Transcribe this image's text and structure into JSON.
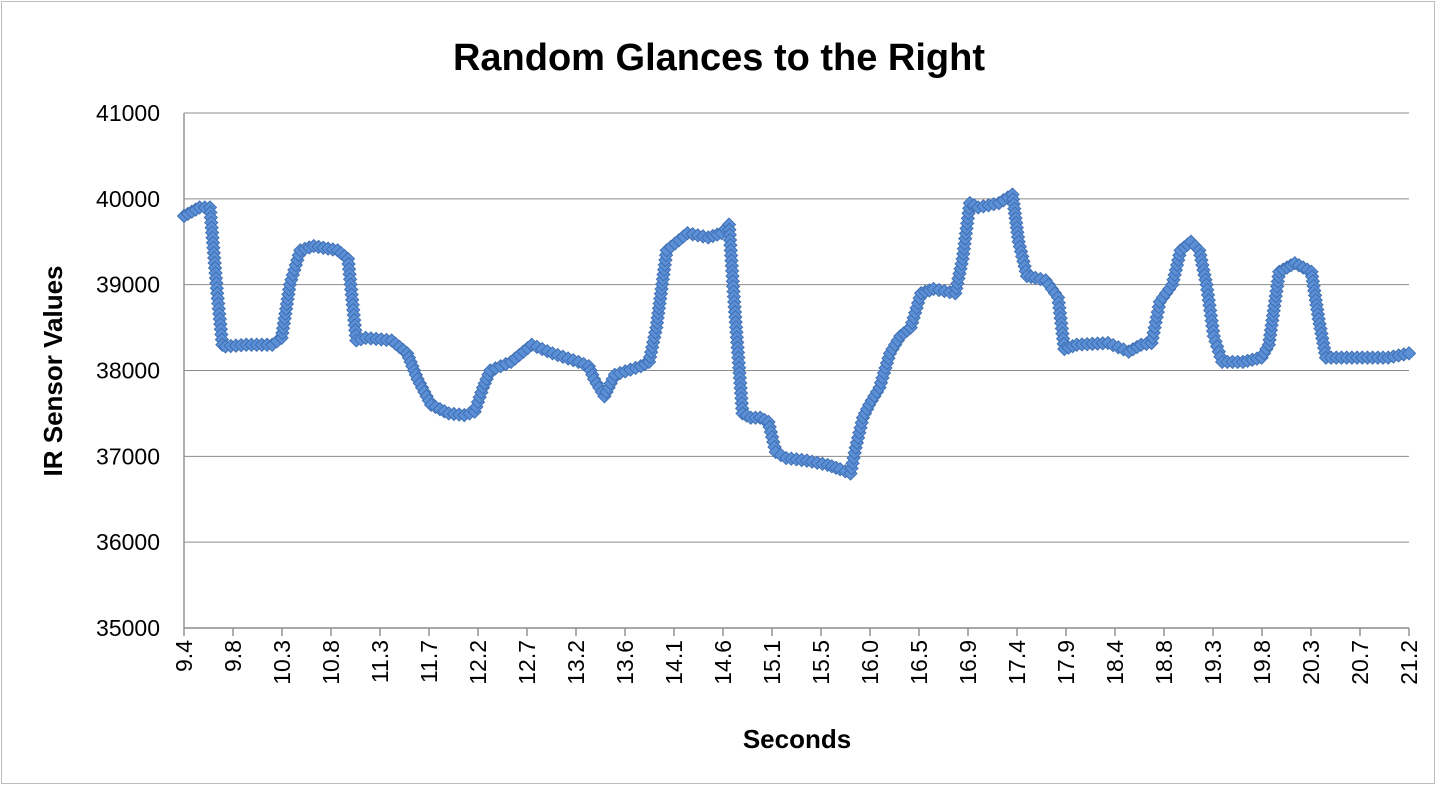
{
  "chart_data": {
    "type": "line",
    "title": "Random Glances to the Right",
    "xlabel": "Seconds",
    "ylabel": "IR Sensor Values",
    "ylim": [
      35000,
      41000
    ],
    "yticks": [
      "35000",
      "36000",
      "37000",
      "38000",
      "39000",
      "40000",
      "41000"
    ],
    "xlim": [
      9.4,
      21.2
    ],
    "xticks": [
      "9.4",
      "9.8",
      "10.3",
      "10.8",
      "11.3",
      "11.7",
      "12.2",
      "12.7",
      "13.2",
      "13.6",
      "14.1",
      "14.6",
      "15.1",
      "15.5",
      "16.0",
      "16.5",
      "16.9",
      "17.4",
      "17.9",
      "18.4",
      "18.8",
      "19.3",
      "19.8",
      "20.3",
      "20.7",
      "21.2"
    ],
    "grid": true,
    "marker": "diamond",
    "color": "#5b8fd6",
    "series": [
      {
        "name": "",
        "x": [
          9.4,
          9.55,
          9.65,
          9.72,
          9.77,
          9.8,
          10.0,
          10.25,
          10.34,
          10.42,
          10.52,
          10.65,
          10.88,
          10.98,
          11.06,
          11.15,
          11.4,
          11.55,
          11.65,
          11.78,
          11.95,
          12.1,
          12.2,
          12.28,
          12.35,
          12.55,
          12.75,
          12.95,
          13.2,
          13.3,
          13.35,
          13.45,
          13.55,
          13.8,
          13.88,
          13.95,
          14.05,
          14.25,
          14.45,
          14.58,
          14.65,
          14.7,
          14.78,
          14.86,
          14.95,
          15.03,
          15.1,
          15.2,
          15.4,
          15.6,
          15.72,
          15.82,
          15.87,
          15.94,
          16.0,
          16.1,
          16.2,
          16.3,
          16.4,
          16.5,
          16.62,
          16.83,
          16.9,
          16.97,
          17.05,
          17.25,
          17.38,
          17.44,
          17.52,
          17.6,
          17.7,
          17.82,
          17.88,
          18.0,
          18.3,
          18.5,
          18.62,
          18.72,
          18.8,
          18.92,
          19.0,
          19.1,
          19.18,
          19.25,
          19.32,
          19.4,
          19.6,
          19.78,
          19.85,
          19.95,
          20.1,
          20.26,
          20.33,
          20.4,
          20.55,
          20.85,
          21.0,
          21.2
        ],
        "y": [
          39800,
          39900,
          39900,
          38900,
          38300,
          38280,
          38300,
          38300,
          38380,
          39000,
          39400,
          39450,
          39400,
          39300,
          38350,
          38380,
          38350,
          38200,
          37900,
          37600,
          37500,
          37480,
          37520,
          37800,
          38000,
          38100,
          38300,
          38200,
          38100,
          38050,
          37900,
          37700,
          37950,
          38050,
          38100,
          38500,
          39400,
          39600,
          39550,
          39600,
          39700,
          38800,
          37500,
          37450,
          37450,
          37400,
          37050,
          36980,
          36950,
          36900,
          36850,
          36800,
          37100,
          37450,
          37600,
          37800,
          38200,
          38400,
          38500,
          38900,
          38950,
          38900,
          39300,
          39950,
          39900,
          39950,
          40050,
          39500,
          39100,
          39080,
          39050,
          38850,
          38250,
          38300,
          38320,
          38220,
          38300,
          38320,
          38800,
          39000,
          39400,
          39500,
          39400,
          39000,
          38400,
          38100,
          38100,
          38150,
          38300,
          39150,
          39250,
          39150,
          38600,
          38150,
          38150,
          38150,
          38150,
          38200
        ]
      }
    ]
  }
}
